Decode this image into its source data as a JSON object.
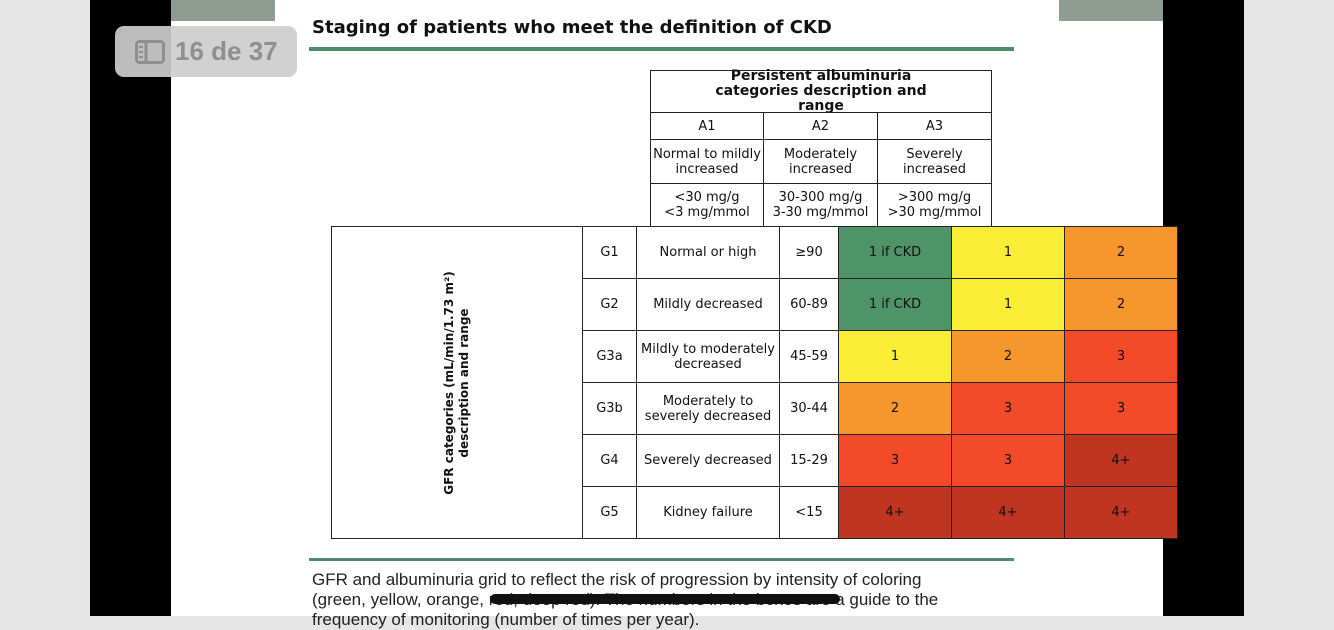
{
  "viewer": {
    "page_indicator": "16 de 37",
    "page_indicator_icon": "sidebar-icon"
  },
  "document": {
    "title": "Staging of patients who meet the definition of CKD",
    "albuminuria_header": "Persistent albuminuria categories description and range",
    "albuminuria_categories": [
      {
        "code": "A1",
        "desc": "Normal to mildly increased",
        "range1": "<30 mg/g",
        "range2": "<3 mg/mmol"
      },
      {
        "code": "A2",
        "desc": "Moderately increased",
        "range1": "30-300 mg/g",
        "range2": "3-30 mg/mmol"
      },
      {
        "code": "A3",
        "desc": "Severely increased",
        "range1": ">300 mg/g",
        "range2": ">30 mg/mmol"
      }
    ],
    "gfr_axis_label": "GFR categories (mL/min/1.73 m²) description and range",
    "gfr_rows": [
      {
        "code": "G1",
        "desc": "Normal or high",
        "range": "≥90",
        "cells": [
          "1 if CKD",
          "1",
          "2"
        ],
        "colors": [
          "green",
          "yellow",
          "orange"
        ]
      },
      {
        "code": "G2",
        "desc": "Mildly decreased",
        "range": "60-89",
        "cells": [
          "1 if CKD",
          "1",
          "2"
        ],
        "colors": [
          "green",
          "yellow",
          "orange"
        ]
      },
      {
        "code": "G3a",
        "desc": "Mildly to moderately decreased",
        "range": "45-59",
        "cells": [
          "1",
          "2",
          "3"
        ],
        "colors": [
          "yellow",
          "orange",
          "red"
        ]
      },
      {
        "code": "G3b",
        "desc": "Moderately to severely decreased",
        "range": "30-44",
        "cells": [
          "2",
          "3",
          "3"
        ],
        "colors": [
          "orange",
          "red",
          "red"
        ]
      },
      {
        "code": "G4",
        "desc": "Severely decreased",
        "range": "15-29",
        "cells": [
          "3",
          "3",
          "4+"
        ],
        "colors": [
          "red",
          "red",
          "dark"
        ]
      },
      {
        "code": "G5",
        "desc": "Kidney failure",
        "range": "<15",
        "cells": [
          "4+",
          "4+",
          "4+"
        ],
        "colors": [
          "dark",
          "dark",
          "dark"
        ]
      }
    ],
    "caption_line1": "GFR and albuminuria grid to reflect the risk of progression by intensity of coloring",
    "caption_line2": "(green, yellow, orange, red, deep red). The numbers in the boxes are a guide to the",
    "caption_line3": "frequency of monitoring (number of times per year)."
  },
  "colors": {
    "green": "#4f9467",
    "yellow": "#f9ee35",
    "orange": "#f7962d",
    "red": "#f34a2a",
    "dark": "#bf3522",
    "rule": "#4d8b6c"
  }
}
